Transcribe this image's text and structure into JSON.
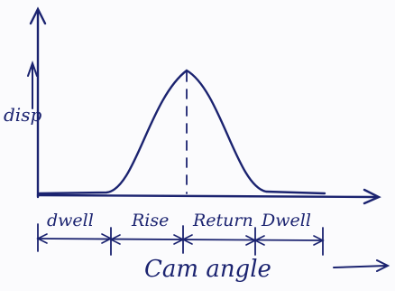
{
  "y_axis": {
    "label": "disp"
  },
  "x_axis": {
    "label": "Cam angle"
  },
  "segments": [
    "dwell",
    "Rise",
    "Return",
    "Dwell"
  ]
}
